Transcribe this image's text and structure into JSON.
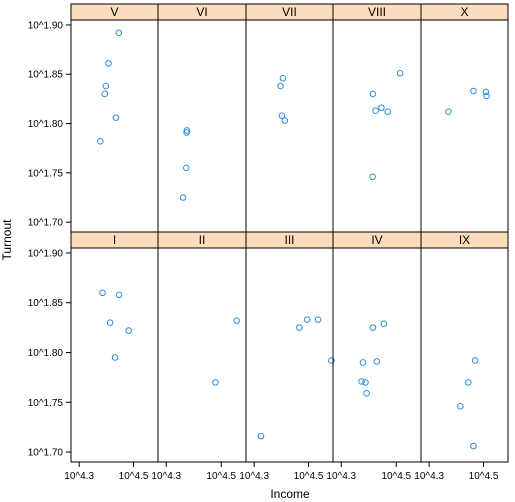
{
  "chart_data": {
    "type": "scatter",
    "title": "",
    "xlabel": "Income",
    "ylabel": "Turnout",
    "x_scale": "log10",
    "y_scale": "log10",
    "xlim": [
      4.27,
      4.59
    ],
    "ylim": [
      1.69,
      1.905
    ],
    "x_ticks": [
      4.3,
      4.5
    ],
    "x_tick_labels": [
      "10^4.3",
      "10^4.5"
    ],
    "y_ticks": [
      1.7,
      1.75,
      1.8,
      1.85,
      1.9
    ],
    "y_tick_labels": [
      "10^1.70",
      "10^1.75",
      "10^1.80",
      "10^1.85",
      "10^1.90"
    ],
    "grid": false,
    "legend": "none",
    "colors": {
      "point": "#2f8ed6",
      "strip": "#fcdcbc",
      "border": "#000000"
    },
    "panel_layout": {
      "rows": [
        [
          "V",
          "VI",
          "VII",
          "VIII",
          "X"
        ],
        [
          "I",
          "II",
          "III",
          "IV",
          "IX"
        ]
      ]
    },
    "panels": [
      {
        "label": "V",
        "points": [
          [
            4.378,
            1.782
          ],
          [
            4.394,
            1.83
          ],
          [
            4.398,
            1.838
          ],
          [
            4.408,
            1.861
          ],
          [
            4.435,
            1.806
          ],
          [
            4.446,
            1.892
          ]
        ]
      },
      {
        "label": "VI",
        "points": [
          [
            4.361,
            1.725
          ],
          [
            4.373,
            1.755
          ],
          [
            4.374,
            1.791
          ],
          [
            4.375,
            1.793
          ]
        ]
      },
      {
        "label": "VII",
        "points": [
          [
            4.397,
            1.838
          ],
          [
            4.402,
            1.808
          ],
          [
            4.406,
            1.846
          ],
          [
            4.413,
            1.803
          ]
        ]
      },
      {
        "label": "VIII",
        "points": [
          [
            4.414,
            1.746
          ],
          [
            4.415,
            1.83
          ],
          [
            4.425,
            1.813
          ],
          [
            4.446,
            1.816
          ],
          [
            4.469,
            1.812
          ],
          [
            4.514,
            1.851
          ]
        ]
      },
      {
        "label": "X",
        "points": [
          [
            4.371,
            1.812
          ],
          [
            4.463,
            1.833
          ],
          [
            4.509,
            1.832
          ],
          [
            4.511,
            1.828
          ]
        ]
      },
      {
        "label": "I",
        "points": [
          [
            4.386,
            1.86
          ],
          [
            4.414,
            1.83
          ],
          [
            4.432,
            1.795
          ],
          [
            4.447,
            1.858
          ],
          [
            4.482,
            1.822
          ]
        ]
      },
      {
        "label": "II",
        "points": [
          [
            4.479,
            1.77
          ],
          [
            4.556,
            1.832
          ]
        ]
      },
      {
        "label": "III",
        "points": [
          [
            4.325,
            1.716
          ],
          [
            4.466,
            1.825
          ],
          [
            4.495,
            1.833
          ],
          [
            4.535,
            1.833
          ],
          [
            4.584,
            1.792
          ]
        ]
      },
      {
        "label": "IV",
        "points": [
          [
            4.374,
            1.771
          ],
          [
            4.379,
            1.79
          ],
          [
            4.388,
            1.77
          ],
          [
            4.392,
            1.759
          ],
          [
            4.415,
            1.825
          ],
          [
            4.429,
            1.791
          ],
          [
            4.455,
            1.829
          ]
        ]
      },
      {
        "label": "IX",
        "points": [
          [
            4.415,
            1.746
          ],
          [
            4.444,
            1.77
          ],
          [
            4.463,
            1.706
          ],
          [
            4.469,
            1.792
          ]
        ]
      }
    ]
  }
}
